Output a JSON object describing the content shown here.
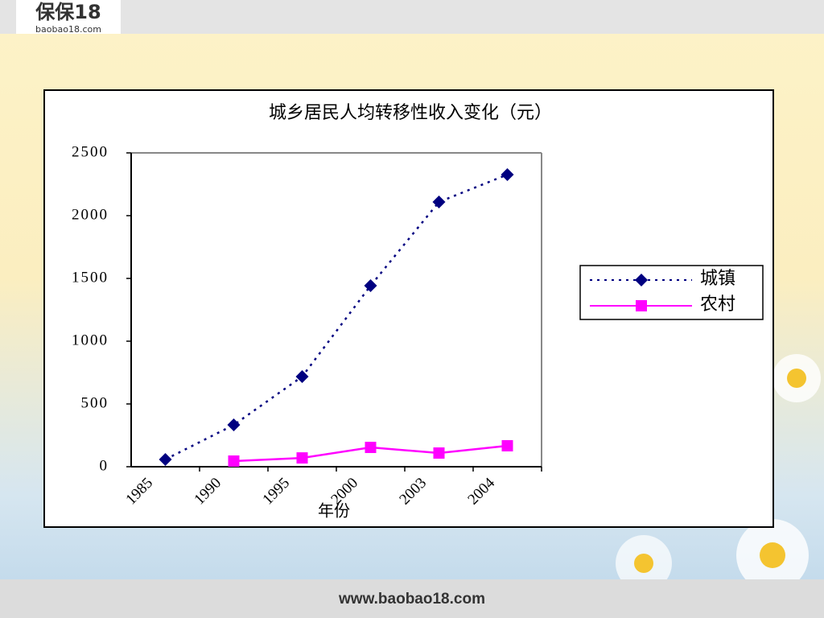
{
  "header": {
    "logo": "保保18",
    "logo_sub": "baobao18.com"
  },
  "footer": {
    "url": "www.baobao18.com"
  },
  "chart_data": {
    "type": "line",
    "title": "城乡居民人均转移性收入变化（元）",
    "x_label": "年份",
    "categories": [
      "1985",
      "1990",
      "1995",
      "2000",
      "2003",
      "2004"
    ],
    "series": [
      {
        "name": "城镇",
        "color": "#000080",
        "marker": "diamond",
        "dash": "dotted",
        "values": [
          58,
          333,
          718,
          1442,
          2109,
          2327
        ]
      },
      {
        "name": "农村",
        "color": "#ff00ff",
        "marker": "square",
        "dash": "solid",
        "values": [
          null,
          45,
          70,
          154,
          109,
          167
        ]
      }
    ],
    "ylim": [
      0,
      2500
    ],
    "yticks": [
      0,
      500,
      1000,
      1500,
      2000,
      2500
    ],
    "legend": "right"
  }
}
